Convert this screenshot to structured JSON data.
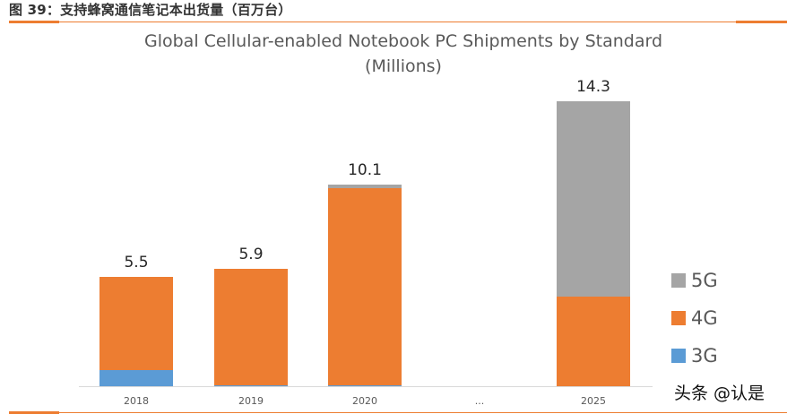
{
  "figure": {
    "caption": "图 39：支持蜂窝通信笔记本出货量（百万台）",
    "watermark": "头条 @认是"
  },
  "colors": {
    "3G": "#5B9BD5",
    "4G": "#ED7D31",
    "5G": "#A5A5A5",
    "accent": "#ED7D31"
  },
  "chart_data": {
    "type": "bar",
    "stacked": true,
    "title": "Global Cellular-enabled Notebook PC Shipments by Standard",
    "subtitle": "(Millions)",
    "xlabel": "",
    "ylabel": "",
    "categories": [
      "2018",
      "2019",
      "2020",
      "...",
      "2025"
    ],
    "series": [
      {
        "name": "3G",
        "values": [
          0.8,
          0.05,
          0.05,
          null,
          0
        ]
      },
      {
        "name": "4G",
        "values": [
          4.7,
          5.85,
          9.9,
          null,
          4.5
        ]
      },
      {
        "name": "5G",
        "values": [
          0,
          0,
          0.15,
          null,
          9.8
        ]
      }
    ],
    "totals": [
      "5.5",
      "5.9",
      "10.1",
      "",
      "14.3"
    ],
    "ylim": [
      0,
      14.3
    ],
    "grid": false,
    "legend_position": "right",
    "legend": [
      "5G",
      "4G",
      "3G"
    ]
  }
}
